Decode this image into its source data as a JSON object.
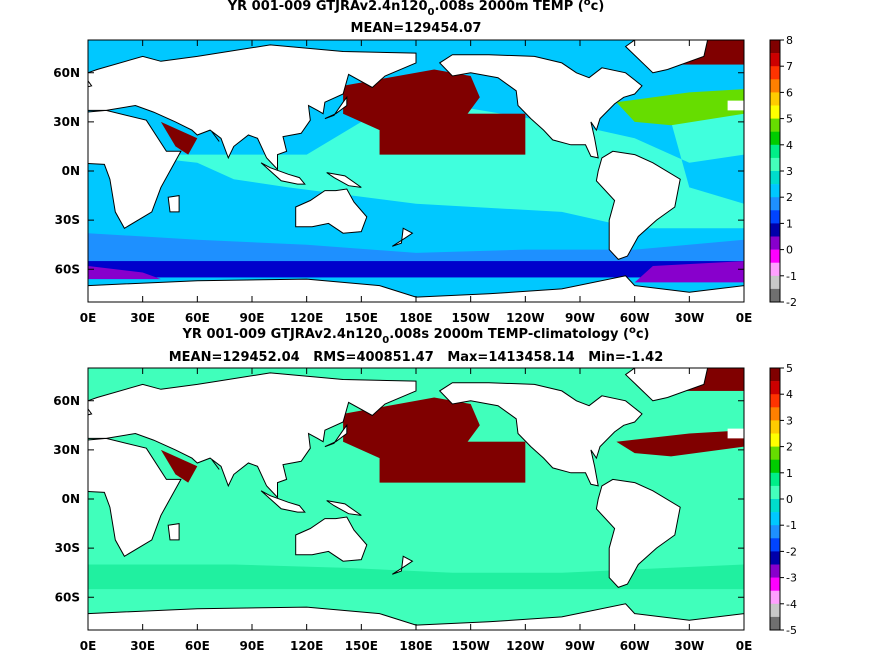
{
  "panels": [
    {
      "title_prefix": "YR 001-009 GTJRAv2.4n120",
      "title_sub": "0",
      "title_suffix": ".008s 2000m TEMP (",
      "title_sup": "o",
      "title_end": "c)",
      "stats": "MEAN=129454.07",
      "lat_labels": [
        "60N",
        "30N",
        "0N",
        "30S",
        "60S"
      ],
      "lon_labels": [
        "0E",
        "30E",
        "60E",
        "90E",
        "120E",
        "150E",
        "180E",
        "150W",
        "120W",
        "90W",
        "60W",
        "30W",
        "0E"
      ],
      "colorbar_labels": [
        "8",
        "7",
        "6",
        "5",
        "4",
        "3",
        "2",
        "1",
        "0",
        "-1",
        "-2"
      ]
    },
    {
      "title_prefix": "YR 001-009 GTJRAv2.4n120",
      "title_sub": "0",
      "title_suffix": ".008s 2000m TEMP-climatology (",
      "title_sup": "o",
      "title_end": "c)",
      "stats": "MEAN=129452.04   RMS=400851.47   Max=1413458.14   Min=-1.42",
      "lat_labels": [
        "60N",
        "30N",
        "0N",
        "30S",
        "60S"
      ],
      "lon_labels": [
        "0E",
        "30E",
        "60E",
        "90E",
        "120E",
        "150E",
        "180E",
        "150W",
        "120W",
        "90W",
        "60W",
        "30W",
        "0E"
      ],
      "colorbar_labels": [
        "5",
        "4",
        "3",
        "2",
        "1",
        "0",
        "-1",
        "-2",
        "-3",
        "-4",
        "-5"
      ]
    }
  ],
  "colorbar_colors": [
    "#800000",
    "#cc0000",
    "#ff3300",
    "#ff8000",
    "#ffcc00",
    "#ffff00",
    "#66dd00",
    "#00cc00",
    "#00ee88",
    "#44ffbb",
    "#00ddcc",
    "#00c8ff",
    "#1e90ff",
    "#0044ff",
    "#0000aa",
    "#8800cc",
    "#ff00ff",
    "#ffa0ff",
    "#c8c8c8",
    "#707070"
  ],
  "map_colors": {
    "land": "#ffffff",
    "dark_red": "#800000",
    "light_blue": "#00c8ff",
    "cyan": "#40ffdd",
    "blue": "#1e90ff",
    "dark_blue": "#0000cc",
    "purple": "#8800cc",
    "green": "#66dd00",
    "mint": "#40ffbb",
    "light_mint": "#20f0a0"
  }
}
